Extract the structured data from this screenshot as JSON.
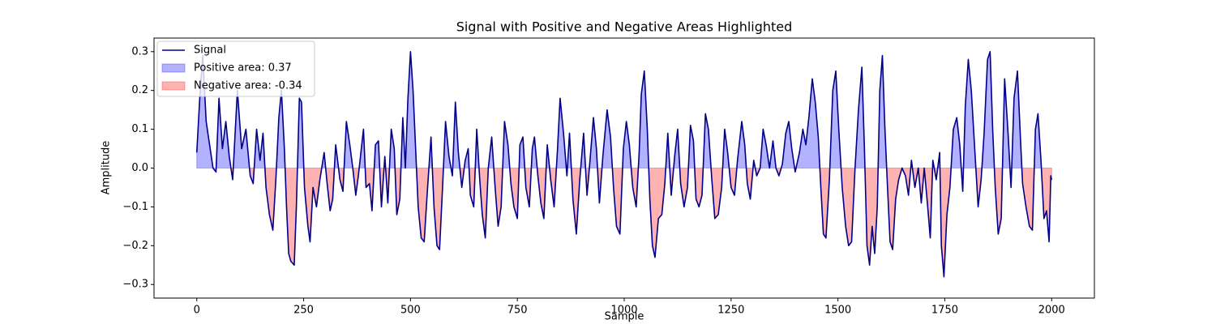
{
  "chart_data": {
    "type": "line",
    "title": "Signal with Positive and Negative Areas Highlighted",
    "xlabel": "Sample",
    "ylabel": "Amplitude",
    "xlim": [
      -100,
      2100
    ],
    "ylim": [
      -0.335,
      0.335
    ],
    "xticks": [
      0,
      250,
      500,
      750,
      1000,
      1250,
      1500,
      1750,
      2000
    ],
    "yticks": [
      {
        "value": -0.3,
        "label": "−0.3"
      },
      {
        "value": -0.2,
        "label": "−0.2"
      },
      {
        "value": -0.1,
        "label": "−0.1"
      },
      {
        "value": 0,
        "label": "0.0"
      },
      0.1,
      0.2,
      0.3
    ],
    "legend": "upper left",
    "fill_alpha": 0.3,
    "fills": [
      {
        "name": "Positive area: 0.37",
        "color": "blue"
      },
      {
        "name": "Negative area: -0.34",
        "color": "red"
      }
    ],
    "x": [
      0,
      8,
      14,
      22,
      30,
      38,
      45,
      52,
      60,
      68,
      76,
      84,
      95,
      105,
      115,
      125,
      132,
      140,
      148,
      155,
      162,
      170,
      178,
      185,
      192,
      198,
      205,
      210,
      215,
      220,
      228,
      233,
      240,
      245,
      252,
      260,
      265,
      272,
      280,
      288,
      298,
      305,
      312,
      318,
      325,
      335,
      342,
      350,
      358,
      365,
      372,
      378,
      390,
      396,
      404,
      410,
      418,
      425,
      432,
      440,
      447,
      455,
      462,
      468,
      475,
      482,
      488,
      494,
      500,
      506,
      512,
      518,
      525,
      532,
      540,
      548,
      555,
      562,
      568,
      575,
      582,
      590,
      598,
      605,
      612,
      620,
      628,
      635,
      640,
      648,
      655,
      662,
      668,
      675,
      682,
      690,
      698,
      705,
      712,
      720,
      728,
      735,
      742,
      750,
      756,
      763,
      770,
      778,
      785,
      790,
      798,
      805,
      812,
      820,
      828,
      836,
      844,
      850,
      858,
      866,
      872,
      880,
      888,
      896,
      905,
      913,
      920,
      928,
      935,
      942,
      950,
      960,
      968,
      975,
      982,
      990,
      998,
      1005,
      1012,
      1020,
      1028,
      1035,
      1040,
      1047,
      1054,
      1060,
      1066,
      1072,
      1080,
      1088,
      1095,
      1102,
      1110,
      1118,
      1125,
      1132,
      1140,
      1148,
      1155,
      1162,
      1168,
      1175,
      1182,
      1190,
      1197,
      1205,
      1212,
      1220,
      1228,
      1235,
      1242,
      1250,
      1258,
      1265,
      1275,
      1282,
      1288,
      1295,
      1303,
      1310,
      1318,
      1325,
      1332,
      1340,
      1348,
      1355,
      1362,
      1370,
      1378,
      1385,
      1392,
      1400,
      1410,
      1418,
      1425,
      1432,
      1440,
      1447,
      1454,
      1460,
      1466,
      1472,
      1480,
      1488,
      1495,
      1502,
      1510,
      1518,
      1525,
      1532,
      1540,
      1548,
      1556,
      1562,
      1568,
      1574,
      1580,
      1586,
      1592,
      1598,
      1604,
      1610,
      1616,
      1622,
      1628,
      1635,
      1642,
      1650,
      1658,
      1665,
      1672,
      1680,
      1688,
      1695,
      1702,
      1710,
      1716,
      1722,
      1730,
      1738,
      1742,
      1748,
      1755,
      1762,
      1770,
      1778,
      1785,
      1792,
      1798,
      1805,
      1812,
      1820,
      1828,
      1835,
      1842,
      1850,
      1856,
      1862,
      1868,
      1875,
      1882,
      1890,
      1898,
      1905,
      1912,
      1920,
      1926,
      1932,
      1940,
      1948,
      1955,
      1962,
      1968,
      1975,
      1982,
      1988,
      1994,
      1998,
      2000
    ],
    "series": [
      {
        "name": "Signal",
        "color": "#00008b",
        "values": [
          0.04,
          0.2,
          0.29,
          0.12,
          0.06,
          0.0,
          -0.01,
          0.18,
          0.05,
          0.12,
          0.03,
          -0.03,
          0.2,
          0.05,
          0.1,
          -0.02,
          -0.04,
          0.1,
          0.02,
          0.09,
          -0.05,
          -0.12,
          -0.16,
          -0.03,
          0.13,
          0.2,
          0.05,
          -0.1,
          -0.22,
          -0.24,
          -0.25,
          -0.1,
          0.18,
          0.17,
          -0.05,
          -0.15,
          -0.19,
          -0.05,
          -0.1,
          -0.03,
          0.04,
          -0.04,
          -0.11,
          -0.08,
          0.06,
          -0.03,
          -0.06,
          0.12,
          0.06,
          0.0,
          -0.07,
          -0.02,
          0.1,
          -0.05,
          -0.04,
          -0.11,
          0.06,
          0.07,
          -0.1,
          0.03,
          -0.09,
          0.1,
          0.05,
          -0.12,
          -0.08,
          0.13,
          0.0,
          0.18,
          0.3,
          0.2,
          0.05,
          -0.1,
          -0.18,
          -0.19,
          -0.05,
          0.08,
          -0.1,
          -0.2,
          -0.21,
          -0.05,
          0.12,
          0.03,
          -0.02,
          0.17,
          0.04,
          -0.05,
          0.02,
          0.05,
          -0.07,
          -0.1,
          0.1,
          -0.03,
          -0.12,
          -0.18,
          0.0,
          0.08,
          -0.05,
          -0.15,
          -0.1,
          0.12,
          0.06,
          -0.04,
          -0.1,
          -0.13,
          0.06,
          0.08,
          -0.05,
          -0.1,
          0.05,
          0.08,
          -0.02,
          -0.09,
          -0.13,
          0.06,
          -0.03,
          -0.1,
          0.05,
          0.18,
          0.09,
          -0.02,
          0.09,
          -0.08,
          -0.17,
          -0.03,
          0.09,
          -0.07,
          0.02,
          0.13,
          0.05,
          -0.09,
          0.03,
          0.15,
          0.08,
          -0.05,
          -0.15,
          -0.17,
          0.05,
          0.12,
          0.06,
          -0.05,
          -0.1,
          0.04,
          0.19,
          0.25,
          0.1,
          -0.08,
          -0.2,
          -0.23,
          -0.13,
          -0.12,
          -0.04,
          0.09,
          -0.07,
          0.03,
          0.1,
          -0.04,
          -0.1,
          -0.05,
          0.11,
          0.07,
          -0.08,
          -0.1,
          -0.07,
          0.14,
          0.1,
          -0.03,
          -0.13,
          -0.12,
          -0.05,
          0.1,
          0.04,
          -0.05,
          -0.07,
          0.02,
          0.12,
          0.06,
          -0.04,
          -0.08,
          0.02,
          -0.02,
          0.0,
          0.1,
          0.06,
          0.0,
          0.07,
          0.0,
          -0.02,
          0.01,
          0.09,
          0.12,
          0.05,
          -0.01,
          0.04,
          0.1,
          0.06,
          0.13,
          0.23,
          0.17,
          0.08,
          -0.05,
          -0.17,
          -0.18,
          -0.03,
          0.2,
          0.25,
          0.1,
          -0.05,
          -0.15,
          -0.2,
          -0.19,
          0.0,
          0.15,
          0.26,
          0.05,
          -0.2,
          -0.25,
          -0.15,
          -0.22,
          -0.1,
          0.2,
          0.29,
          0.1,
          -0.05,
          -0.19,
          -0.21,
          -0.08,
          -0.03,
          0.0,
          -0.02,
          -0.07,
          0.02,
          -0.05,
          0.0,
          -0.09,
          0.0,
          -0.1,
          -0.18,
          0.02,
          -0.03,
          0.04,
          -0.2,
          -0.28,
          -0.12,
          -0.05,
          0.1,
          0.13,
          0.06,
          -0.06,
          0.16,
          0.28,
          0.2,
          0.05,
          -0.1,
          -0.03,
          0.09,
          0.28,
          0.3,
          0.1,
          -0.05,
          -0.17,
          -0.13,
          0.23,
          0.09,
          -0.05,
          0.18,
          0.25,
          0.1,
          -0.04,
          -0.1,
          -0.15,
          -0.16,
          0.1,
          0.14,
          0.02,
          -0.13,
          -0.11,
          -0.19,
          -0.02,
          -0.03
        ]
      }
    ]
  }
}
